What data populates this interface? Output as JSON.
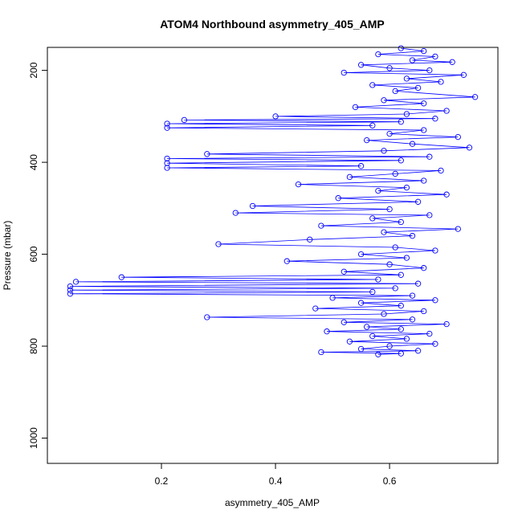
{
  "chart_data": {
    "type": "line",
    "title": "ATOM4 Northbound asymmetry_405_AMP",
    "xlabel": "asymmetry_405_AMP",
    "ylabel": "Pressure (mbar)",
    "xlim": [
      0.0,
      0.79
    ],
    "ylim": [
      1055,
      150
    ],
    "y_reversed": true,
    "x_ticks": [
      0.2,
      0.4,
      0.6
    ],
    "x_tick_labels": [
      "0.2",
      "0.4",
      "0.6"
    ],
    "y_ticks": [
      200,
      400,
      600,
      800,
      1000
    ],
    "y_tick_labels": [
      "200",
      "400",
      "600",
      "800",
      "1000"
    ],
    "grid": false,
    "legend": "none",
    "marker": "open-circle",
    "connect_points": true,
    "series": [
      {
        "color": "#0000ff",
        "points": [
          [
            0.62,
            152
          ],
          [
            0.66,
            158
          ],
          [
            0.58,
            165
          ],
          [
            0.68,
            170
          ],
          [
            0.64,
            178
          ],
          [
            0.71,
            182
          ],
          [
            0.55,
            188
          ],
          [
            0.6,
            195
          ],
          [
            0.67,
            200
          ],
          [
            0.52,
            205
          ],
          [
            0.73,
            210
          ],
          [
            0.63,
            218
          ],
          [
            0.69,
            225
          ],
          [
            0.57,
            232
          ],
          [
            0.65,
            238
          ],
          [
            0.61,
            245
          ],
          [
            0.75,
            258
          ],
          [
            0.59,
            265
          ],
          [
            0.66,
            272
          ],
          [
            0.54,
            280
          ],
          [
            0.7,
            288
          ],
          [
            0.63,
            295
          ],
          [
            0.4,
            300
          ],
          [
            0.68,
            305
          ],
          [
            0.24,
            308
          ],
          [
            0.62,
            312
          ],
          [
            0.21,
            316
          ],
          [
            0.57,
            320
          ],
          [
            0.21,
            325
          ],
          [
            0.66,
            330
          ],
          [
            0.6,
            338
          ],
          [
            0.72,
            345
          ],
          [
            0.56,
            352
          ],
          [
            0.64,
            360
          ],
          [
            0.74,
            368
          ],
          [
            0.59,
            375
          ],
          [
            0.28,
            382
          ],
          [
            0.67,
            388
          ],
          [
            0.21,
            392
          ],
          [
            0.62,
            396
          ],
          [
            0.21,
            402
          ],
          [
            0.55,
            408
          ],
          [
            0.21,
            412
          ],
          [
            0.69,
            418
          ],
          [
            0.61,
            425
          ],
          [
            0.53,
            432
          ],
          [
            0.66,
            440
          ],
          [
            0.44,
            448
          ],
          [
            0.63,
            455
          ],
          [
            0.58,
            462
          ],
          [
            0.7,
            470
          ],
          [
            0.51,
            478
          ],
          [
            0.65,
            486
          ],
          [
            0.36,
            495
          ],
          [
            0.6,
            502
          ],
          [
            0.33,
            510
          ],
          [
            0.67,
            515
          ],
          [
            0.57,
            522
          ],
          [
            0.62,
            530
          ],
          [
            0.48,
            538
          ],
          [
            0.72,
            545
          ],
          [
            0.59,
            552
          ],
          [
            0.64,
            560
          ],
          [
            0.46,
            568
          ],
          [
            0.3,
            578
          ],
          [
            0.61,
            585
          ],
          [
            0.68,
            592
          ],
          [
            0.55,
            600
          ],
          [
            0.63,
            608
          ],
          [
            0.42,
            615
          ],
          [
            0.6,
            622
          ],
          [
            0.66,
            630
          ],
          [
            0.52,
            638
          ],
          [
            0.62,
            645
          ],
          [
            0.13,
            650
          ],
          [
            0.58,
            655
          ],
          [
            0.05,
            660
          ],
          [
            0.65,
            664
          ],
          [
            0.04,
            670
          ],
          [
            0.61,
            674
          ],
          [
            0.04,
            678
          ],
          [
            0.57,
            682
          ],
          [
            0.04,
            686
          ],
          [
            0.64,
            690
          ],
          [
            0.5,
            695
          ],
          [
            0.68,
            700
          ],
          [
            0.55,
            706
          ],
          [
            0.62,
            712
          ],
          [
            0.47,
            718
          ],
          [
            0.66,
            724
          ],
          [
            0.59,
            730
          ],
          [
            0.28,
            737
          ],
          [
            0.64,
            742
          ],
          [
            0.52,
            748
          ],
          [
            0.7,
            752
          ],
          [
            0.56,
            758
          ],
          [
            0.62,
            763
          ],
          [
            0.49,
            768
          ],
          [
            0.67,
            773
          ],
          [
            0.57,
            778
          ],
          [
            0.63,
            784
          ],
          [
            0.53,
            790
          ],
          [
            0.68,
            795
          ],
          [
            0.6,
            800
          ],
          [
            0.55,
            806
          ],
          [
            0.65,
            810
          ],
          [
            0.48,
            813
          ],
          [
            0.62,
            816
          ],
          [
            0.58,
            818
          ]
        ]
      }
    ]
  }
}
